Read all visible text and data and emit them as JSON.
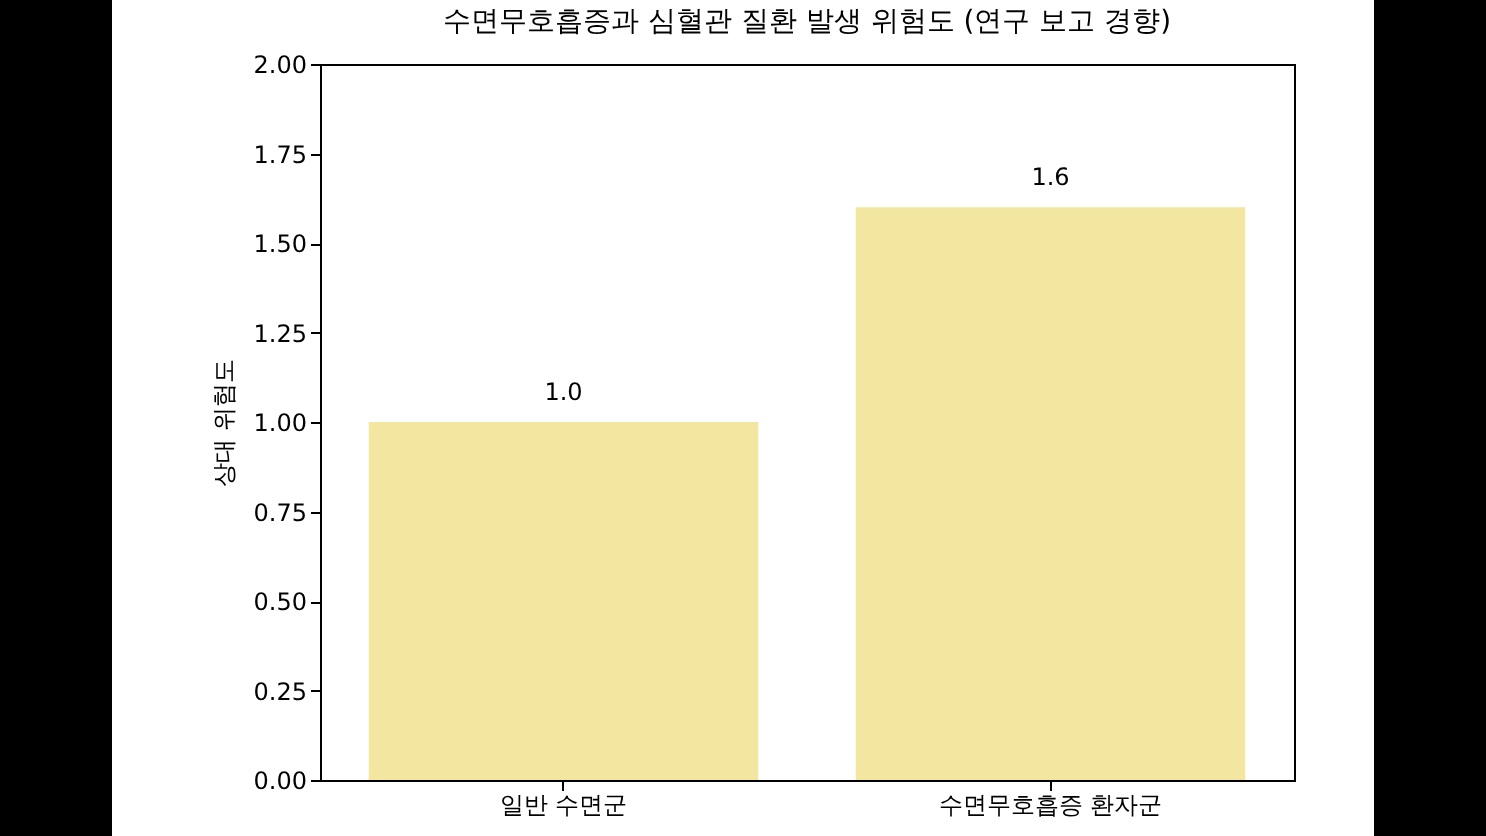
{
  "chart_data": {
    "type": "bar",
    "title": "수면무호흡증과 심혈관 질환 발생 위험도 (연구 보고 경향)",
    "ylabel": "상대 위험도",
    "categories": [
      "일반 수면군",
      "수면무호흡증 환자군"
    ],
    "values": [
      1.0,
      1.6
    ],
    "value_labels": [
      "1.0",
      "1.6"
    ],
    "color": "#f3e6a0",
    "ylim": [
      0,
      2
    ],
    "yticks": [
      {
        "value": 0,
        "label": "0.00"
      },
      {
        "value": 0.25,
        "label": "0.25"
      },
      {
        "value": 0.5,
        "label": "0.50"
      },
      {
        "value": 0.75,
        "label": "0.75"
      },
      {
        "value": 1,
        "label": "1.00"
      },
      {
        "value": 1.25,
        "label": "1.25"
      },
      {
        "value": 1.5,
        "label": "1.50"
      },
      {
        "value": 1.75,
        "label": "1.75"
      },
      {
        "value": 2,
        "label": "2.00"
      }
    ],
    "grid": false
  }
}
